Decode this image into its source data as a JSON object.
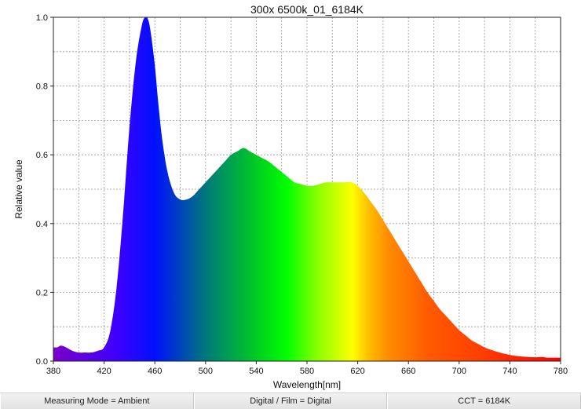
{
  "chart_data": {
    "type": "area",
    "title": "300x 6500k_01_6184K",
    "xlabel": "Wavelength[nm]",
    "ylabel": "Relative value",
    "xlim": [
      380,
      780
    ],
    "ylim": [
      0,
      1.0
    ],
    "xticks": [
      380,
      420,
      460,
      500,
      540,
      580,
      620,
      660,
      700,
      740,
      780
    ],
    "yticks": [
      0.0,
      0.2,
      0.4,
      0.6,
      0.8,
      1.0
    ],
    "xtick_labels": [
      "380",
      "420",
      "460",
      "500",
      "540",
      "580",
      "620",
      "660",
      "700",
      "740",
      "780"
    ],
    "ytick_labels": [
      "0.0",
      "0.2",
      "0.4",
      "0.6",
      "0.8",
      "1.0"
    ],
    "grid": true,
    "x": [
      380,
      383,
      386,
      390,
      395,
      400,
      405,
      410,
      415,
      420,
      425,
      430,
      435,
      440,
      445,
      450,
      453,
      455,
      457,
      460,
      463,
      466,
      470,
      475,
      480,
      485,
      490,
      495,
      500,
      505,
      510,
      515,
      520,
      525,
      530,
      535,
      540,
      545,
      550,
      555,
      560,
      565,
      570,
      575,
      580,
      585,
      590,
      595,
      600,
      605,
      610,
      615,
      620,
      625,
      630,
      635,
      640,
      645,
      650,
      655,
      660,
      665,
      670,
      675,
      680,
      685,
      690,
      695,
      700,
      705,
      710,
      715,
      720,
      725,
      730,
      735,
      740,
      745,
      750,
      755,
      760,
      765,
      770,
      775,
      780
    ],
    "y": [
      0.04,
      0.04,
      0.045,
      0.04,
      0.03,
      0.025,
      0.025,
      0.025,
      0.03,
      0.04,
      0.09,
      0.22,
      0.43,
      0.68,
      0.87,
      0.98,
      1.0,
      0.99,
      0.95,
      0.86,
      0.74,
      0.64,
      0.55,
      0.49,
      0.47,
      0.47,
      0.48,
      0.5,
      0.52,
      0.54,
      0.56,
      0.58,
      0.6,
      0.61,
      0.62,
      0.61,
      0.6,
      0.59,
      0.58,
      0.565,
      0.55,
      0.535,
      0.52,
      0.515,
      0.51,
      0.51,
      0.515,
      0.52,
      0.52,
      0.52,
      0.52,
      0.52,
      0.51,
      0.49,
      0.465,
      0.44,
      0.41,
      0.38,
      0.35,
      0.32,
      0.29,
      0.26,
      0.23,
      0.2,
      0.175,
      0.15,
      0.13,
      0.11,
      0.09,
      0.075,
      0.06,
      0.05,
      0.04,
      0.033,
      0.027,
      0.022,
      0.018,
      0.015,
      0.013,
      0.012,
      0.011,
      0.012,
      0.01,
      0.01,
      0.01
    ]
  },
  "status_bar": {
    "measuring_mode": "Measuring Mode = Ambient",
    "digital_film": "Digital / Film = Digital",
    "cct": "CCT = 6184K"
  }
}
